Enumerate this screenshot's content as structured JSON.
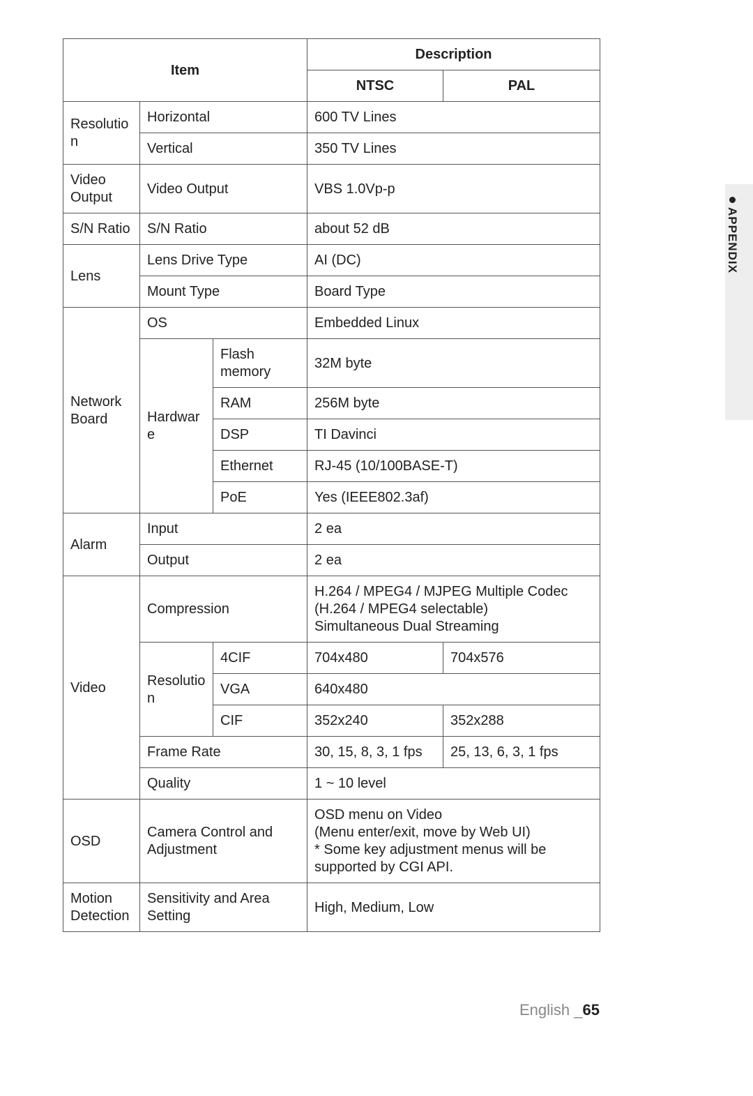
{
  "header": {
    "item": "Item",
    "description": "Description",
    "ntsc": "NTSC",
    "pal": "PAL"
  },
  "cells": {
    "resolution": "Resolution",
    "horizontal": "Horizontal",
    "vertical": "Vertical",
    "res_h_val": "600 TV Lines",
    "res_v_val": "350 TV Lines",
    "video_output": "Video Output",
    "video_output_sub": "Video Output",
    "video_output_val": "VBS 1.0Vp-p",
    "sn_ratio": "S/N Ratio",
    "sn_ratio_sub": "S/N Ratio",
    "sn_ratio_val": "about 52 dB",
    "lens": "Lens",
    "lens_drive_type": "Lens Drive Type",
    "lens_drive_val": "AI (DC)",
    "mount_type": "Mount Type",
    "mount_type_val": "Board Type",
    "network_board": "Network\nBoard",
    "os": "OS",
    "os_val": "Embedded Linux",
    "hardware": "Hardware",
    "flash": "Flash memory",
    "flash_val": "32M byte",
    "ram": "RAM",
    "ram_val": "256M byte",
    "dsp": "DSP",
    "dsp_val": "TI Davinci",
    "ethernet": "Ethernet",
    "ethernet_val": "RJ-45 (10/100BASE-T)",
    "poe": "PoE",
    "poe_val": "Yes (IEEE802.3af)",
    "alarm": "Alarm",
    "alarm_input": "Input",
    "alarm_input_val": "2 ea",
    "alarm_output": "Output",
    "alarm_output_val": "2 ea",
    "video": "Video",
    "compression": "Compression",
    "compression_val": "H.264 / MPEG4 / MJPEG Multiple Codec\n(H.264 / MPEG4 selectable)\nSimultaneous Dual Streaming",
    "v_resolution": "Resolution",
    "v_4cif": "4CIF",
    "v_4cif_ntsc": "704x480",
    "v_4cif_pal": "704x576",
    "v_vga": "VGA",
    "v_vga_val": "640x480",
    "v_cif": "CIF",
    "v_cif_ntsc": "352x240",
    "v_cif_pal": "352x288",
    "frame_rate": "Frame Rate",
    "frame_rate_ntsc": "30, 15, 8, 3, 1 fps",
    "frame_rate_pal": "25, 13, 6, 3, 1 fps",
    "quality": "Quality",
    "quality_val": "1 ~ 10  level",
    "osd": "OSD",
    "camera_control": "Camera Control and Adjustment",
    "osd_val": "OSD menu on Video\n(Menu enter/exit, move by Web UI)\n * Some key adjustment menus will be supported by CGI API.",
    "motion_detection": "Motion\nDetection",
    "sensitivity": "Sensitivity and Area Setting",
    "sensitivity_val": "High, Medium, Low"
  },
  "side_label": "APPENDIX",
  "footer": {
    "lang": "English",
    "page": "65"
  },
  "style": {
    "border_color": "#555555",
    "header_bold": true,
    "font_size_pt": 15,
    "side_tab_bg": "#eeeeee",
    "page_bg": "#ffffff",
    "footer_muted": "#888888",
    "footer_strong": "#222222"
  }
}
